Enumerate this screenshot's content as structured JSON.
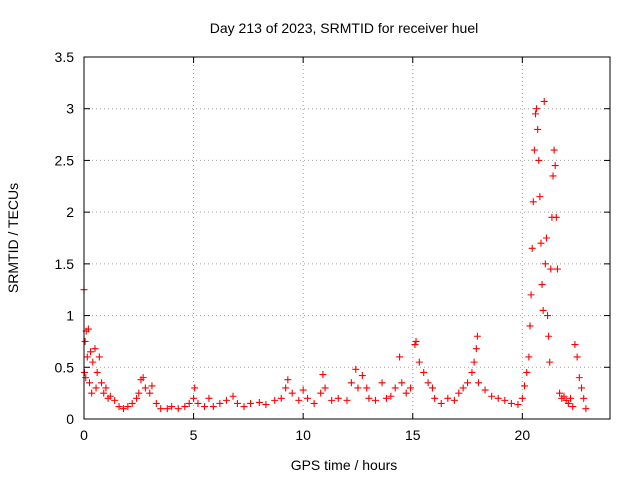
{
  "chart_data": {
    "type": "scatter",
    "title": "Day 213 of 2023, SRMTID for receiver huel",
    "xlabel": "GPS time / hours",
    "ylabel": "SRMTID / TECUs",
    "xlim": [
      0,
      24
    ],
    "ylim": [
      0,
      3.5
    ],
    "xticks": [
      0,
      5,
      10,
      15,
      20
    ],
    "xtick_labels": [
      "0",
      "5",
      "10",
      "15",
      "20"
    ],
    "yticks": [
      0,
      0.5,
      1,
      1.5,
      2,
      2.5,
      3,
      3.5
    ],
    "ytick_labels": [
      "0",
      "0.5",
      "1",
      "1.5",
      "2",
      "2.5",
      "3",
      "3.5"
    ],
    "grid": true,
    "marker": "+",
    "series": [
      {
        "name": "huel",
        "color": "#ff0000",
        "points": [
          [
            0.0,
            1.25
          ],
          [
            0.02,
            0.45
          ],
          [
            0.05,
            0.75
          ],
          [
            0.08,
            0.4
          ],
          [
            0.1,
            0.85
          ],
          [
            0.15,
            0.6
          ],
          [
            0.2,
            0.87
          ],
          [
            0.25,
            0.35
          ],
          [
            0.3,
            0.65
          ],
          [
            0.35,
            0.25
          ],
          [
            0.4,
            0.55
          ],
          [
            0.5,
            0.68
          ],
          [
            0.55,
            0.3
          ],
          [
            0.6,
            0.45
          ],
          [
            0.7,
            0.6
          ],
          [
            0.8,
            0.35
          ],
          [
            0.9,
            0.25
          ],
          [
            1.0,
            0.3
          ],
          [
            1.1,
            0.2
          ],
          [
            1.2,
            0.22
          ],
          [
            1.4,
            0.18
          ],
          [
            1.6,
            0.12
          ],
          [
            1.8,
            0.1
          ],
          [
            2.0,
            0.12
          ],
          [
            2.2,
            0.15
          ],
          [
            2.4,
            0.2
          ],
          [
            2.5,
            0.25
          ],
          [
            2.6,
            0.38
          ],
          [
            2.7,
            0.4
          ],
          [
            2.8,
            0.3
          ],
          [
            3.0,
            0.25
          ],
          [
            3.1,
            0.32
          ],
          [
            3.3,
            0.15
          ],
          [
            3.5,
            0.1
          ],
          [
            3.8,
            0.1
          ],
          [
            4.0,
            0.12
          ],
          [
            4.3,
            0.1
          ],
          [
            4.6,
            0.12
          ],
          [
            4.8,
            0.15
          ],
          [
            5.0,
            0.2
          ],
          [
            5.05,
            0.3
          ],
          [
            5.2,
            0.15
          ],
          [
            5.5,
            0.12
          ],
          [
            5.7,
            0.2
          ],
          [
            5.9,
            0.12
          ],
          [
            6.2,
            0.15
          ],
          [
            6.5,
            0.18
          ],
          [
            6.8,
            0.22
          ],
          [
            7.0,
            0.15
          ],
          [
            7.3,
            0.12
          ],
          [
            7.6,
            0.15
          ],
          [
            8.0,
            0.16
          ],
          [
            8.3,
            0.14
          ],
          [
            8.7,
            0.18
          ],
          [
            9.0,
            0.2
          ],
          [
            9.2,
            0.3
          ],
          [
            9.3,
            0.38
          ],
          [
            9.5,
            0.25
          ],
          [
            9.8,
            0.18
          ],
          [
            10.0,
            0.28
          ],
          [
            10.2,
            0.2
          ],
          [
            10.5,
            0.15
          ],
          [
            10.8,
            0.25
          ],
          [
            10.9,
            0.43
          ],
          [
            11.0,
            0.3
          ],
          [
            11.3,
            0.18
          ],
          [
            11.6,
            0.2
          ],
          [
            12.0,
            0.18
          ],
          [
            12.2,
            0.35
          ],
          [
            12.4,
            0.48
          ],
          [
            12.5,
            0.3
          ],
          [
            12.7,
            0.42
          ],
          [
            12.9,
            0.3
          ],
          [
            13.0,
            0.2
          ],
          [
            13.3,
            0.18
          ],
          [
            13.6,
            0.35
          ],
          [
            13.8,
            0.2
          ],
          [
            14.0,
            0.22
          ],
          [
            14.2,
            0.3
          ],
          [
            14.4,
            0.6
          ],
          [
            14.5,
            0.35
          ],
          [
            14.7,
            0.25
          ],
          [
            14.9,
            0.3
          ],
          [
            15.1,
            0.72
          ],
          [
            15.15,
            0.75
          ],
          [
            15.3,
            0.55
          ],
          [
            15.5,
            0.45
          ],
          [
            15.7,
            0.35
          ],
          [
            15.9,
            0.3
          ],
          [
            16.0,
            0.2
          ],
          [
            16.3,
            0.15
          ],
          [
            16.6,
            0.2
          ],
          [
            16.9,
            0.18
          ],
          [
            17.1,
            0.25
          ],
          [
            17.3,
            0.3
          ],
          [
            17.5,
            0.35
          ],
          [
            17.7,
            0.45
          ],
          [
            17.8,
            0.55
          ],
          [
            17.9,
            0.68
          ],
          [
            17.95,
            0.8
          ],
          [
            18.0,
            0.35
          ],
          [
            18.3,
            0.28
          ],
          [
            18.6,
            0.22
          ],
          [
            18.9,
            0.2
          ],
          [
            19.2,
            0.18
          ],
          [
            19.5,
            0.15
          ],
          [
            19.8,
            0.14
          ],
          [
            20.0,
            0.2
          ],
          [
            20.1,
            0.32
          ],
          [
            20.2,
            0.45
          ],
          [
            20.3,
            0.6
          ],
          [
            20.35,
            0.9
          ],
          [
            20.4,
            1.2
          ],
          [
            20.45,
            1.65
          ],
          [
            20.5,
            2.1
          ],
          [
            20.55,
            2.6
          ],
          [
            20.6,
            2.95
          ],
          [
            20.65,
            3.0
          ],
          [
            20.7,
            2.8
          ],
          [
            20.75,
            2.5
          ],
          [
            20.8,
            2.15
          ],
          [
            20.85,
            1.7
          ],
          [
            20.9,
            1.3
          ],
          [
            20.95,
            1.05
          ],
          [
            21.0,
            3.07
          ],
          [
            21.05,
            1.5
          ],
          [
            21.1,
            1.75
          ],
          [
            21.15,
            1.0
          ],
          [
            21.2,
            0.8
          ],
          [
            21.25,
            0.55
          ],
          [
            21.3,
            1.45
          ],
          [
            21.35,
            1.95
          ],
          [
            21.4,
            2.35
          ],
          [
            21.45,
            2.6
          ],
          [
            21.5,
            2.45
          ],
          [
            21.55,
            1.95
          ],
          [
            21.6,
            1.45
          ],
          [
            21.7,
            0.25
          ],
          [
            21.8,
            0.2
          ],
          [
            21.9,
            0.22
          ],
          [
            22.0,
            0.18
          ],
          [
            22.1,
            0.15
          ],
          [
            22.2,
            0.2
          ],
          [
            22.3,
            0.12
          ],
          [
            22.4,
            0.72
          ],
          [
            22.5,
            0.6
          ],
          [
            22.6,
            0.4
          ],
          [
            22.7,
            0.3
          ],
          [
            22.8,
            0.2
          ],
          [
            22.9,
            0.1
          ]
        ]
      }
    ]
  }
}
